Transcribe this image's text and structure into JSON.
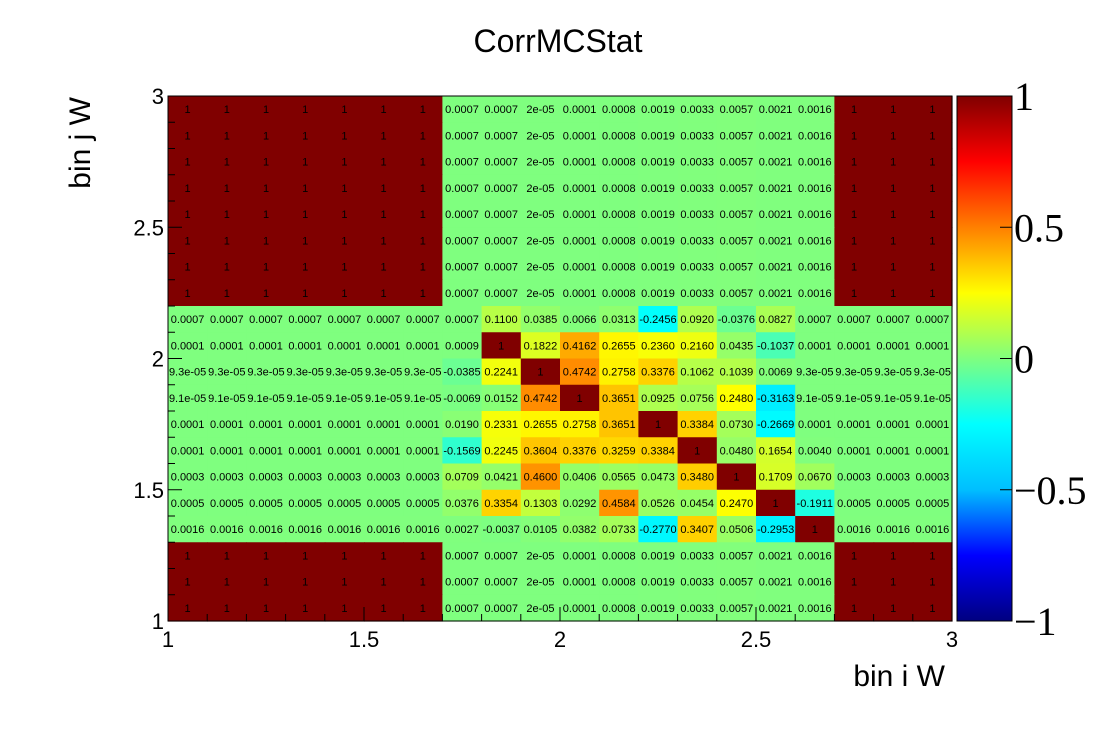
{
  "chart_data": {
    "type": "heatmap",
    "title": "CorrMCStat",
    "xlabel": "bin i W",
    "ylabel": "bin j W",
    "xlim": [
      1,
      3
    ],
    "ylim": [
      1,
      3
    ],
    "x_ticks": [
      "1",
      "1.5",
      "2",
      "2.5",
      "3"
    ],
    "y_ticks": [
      "1",
      "1.5",
      "2",
      "2.5",
      "3"
    ],
    "zlim": [
      -1,
      1
    ],
    "z_ticks": [
      "1",
      "0.5",
      "0",
      "−0.5",
      "−1"
    ],
    "nx": 20,
    "ny": 20,
    "rows": [
      [
        1,
        1,
        1,
        1,
        1,
        1,
        1,
        "0.0007",
        "0.0007",
        "2e-05",
        "0.0001",
        "0.0008",
        "0.0019",
        "0.0033",
        "0.0057",
        "0.0021",
        "0.0016",
        1,
        1,
        1
      ],
      [
        1,
        1,
        1,
        1,
        1,
        1,
        1,
        "0.0007",
        "0.0007",
        "2e-05",
        "0.0001",
        "0.0008",
        "0.0019",
        "0.0033",
        "0.0057",
        "0.0021",
        "0.0016",
        1,
        1,
        1
      ],
      [
        1,
        1,
        1,
        1,
        1,
        1,
        1,
        "0.0007",
        "0.0007",
        "2e-05",
        "0.0001",
        "0.0008",
        "0.0019",
        "0.0033",
        "0.0057",
        "0.0021",
        "0.0016",
        1,
        1,
        1
      ],
      [
        1,
        1,
        1,
        1,
        1,
        1,
        1,
        "0.0007",
        "0.0007",
        "2e-05",
        "0.0001",
        "0.0008",
        "0.0019",
        "0.0033",
        "0.0057",
        "0.0021",
        "0.0016",
        1,
        1,
        1
      ],
      [
        1,
        1,
        1,
        1,
        1,
        1,
        1,
        "0.0007",
        "0.0007",
        "2e-05",
        "0.0001",
        "0.0008",
        "0.0019",
        "0.0033",
        "0.0057",
        "0.0021",
        "0.0016",
        1,
        1,
        1
      ],
      [
        1,
        1,
        1,
        1,
        1,
        1,
        1,
        "0.0007",
        "0.0007",
        "2e-05",
        "0.0001",
        "0.0008",
        "0.0019",
        "0.0033",
        "0.0057",
        "0.0021",
        "0.0016",
        1,
        1,
        1
      ],
      [
        1,
        1,
        1,
        1,
        1,
        1,
        1,
        "0.0007",
        "0.0007",
        "2e-05",
        "0.0001",
        "0.0008",
        "0.0019",
        "0.0033",
        "0.0057",
        "0.0021",
        "0.0016",
        1,
        1,
        1
      ],
      [
        1,
        1,
        1,
        1,
        1,
        1,
        1,
        "0.0007",
        "0.0007",
        "2e-05",
        "0.0001",
        "0.0008",
        "0.0019",
        "0.0033",
        "0.0057",
        "0.0021",
        "0.0016",
        1,
        1,
        1
      ],
      [
        "0.0007",
        "0.0007",
        "0.0007",
        "0.0007",
        "0.0007",
        "0.0007",
        "0.0007",
        "0.0007",
        "0.1100",
        "0.0385",
        "0.0066",
        "0.0313",
        "-0.2456",
        "0.0920",
        "-0.0376",
        "0.0827",
        "0.0007",
        "0.0007",
        "0.0007",
        "0.0007"
      ],
      [
        "0.0001",
        "0.0001",
        "0.0001",
        "0.0001",
        "0.0001",
        "0.0001",
        "0.0001",
        "0.0009",
        "1",
        "0.1822",
        "0.4162",
        "0.2655",
        "0.2360",
        "0.2160",
        "0.0435",
        "-0.1037",
        "0.0001",
        "0.0001",
        "0.0001",
        "0.0001"
      ],
      [
        "9.3e-05",
        "9.3e-05",
        "9.3e-05",
        "9.3e-05",
        "9.3e-05",
        "9.3e-05",
        "9.3e-05",
        "-0.0385",
        "0.2241",
        "1",
        "0.4742",
        "0.2758",
        "0.3376",
        "0.1062",
        "0.1039",
        "0.0069",
        "9.3e-05",
        "9.3e-05",
        "9.3e-05",
        "9.3e-05"
      ],
      [
        "9.1e-05",
        "9.1e-05",
        "9.1e-05",
        "9.1e-05",
        "9.1e-05",
        "9.1e-05",
        "9.1e-05",
        "-0.0069",
        "0.0152",
        "0.4742",
        "1",
        "0.3651",
        "0.0925",
        "0.0756",
        "0.2480",
        "-0.3163",
        "9.1e-05",
        "9.1e-05",
        "9.1e-05",
        "9.1e-05"
      ],
      [
        "0.0001",
        "0.0001",
        "0.0001",
        "0.0001",
        "0.0001",
        "0.0001",
        "0.0001",
        "0.0190",
        "0.2331",
        "0.2655",
        "0.2758",
        "0.3651",
        "1",
        "0.3384",
        "0.0730",
        "-0.2669",
        "0.0001",
        "0.0001",
        "0.0001",
        "0.0001"
      ],
      [
        "0.0001",
        "0.0001",
        "0.0001",
        "0.0001",
        "0.0001",
        "0.0001",
        "0.0001",
        "-0.1569",
        "0.2245",
        "0.3604",
        "0.3376",
        "0.3259",
        "0.3384",
        "1",
        "0.0480",
        "0.1654",
        "0.0040",
        "0.0001",
        "0.0001",
        "0.0001"
      ],
      [
        "0.0003",
        "0.0003",
        "0.0003",
        "0.0003",
        "0.0003",
        "0.0003",
        "0.0003",
        "0.0709",
        "0.0421",
        "0.4600",
        "0.0406",
        "0.0565",
        "0.0473",
        "0.3480",
        "1",
        "0.1709",
        "0.0670",
        "0.0003",
        "0.0003",
        "0.0003"
      ],
      [
        "0.0005",
        "0.0005",
        "0.0005",
        "0.0005",
        "0.0005",
        "0.0005",
        "0.0005",
        "0.0376",
        "0.3354",
        "0.1303",
        "0.0292",
        "0.4584",
        "0.0526",
        "0.0454",
        "0.2470",
        "1",
        "-0.1911",
        "0.0005",
        "0.0005",
        "0.0005"
      ],
      [
        "0.0016",
        "0.0016",
        "0.0016",
        "0.0016",
        "0.0016",
        "0.0016",
        "0.0016",
        "0.0027",
        "-0.0037",
        "0.0105",
        "0.0382",
        "0.0733",
        "-0.2770",
        "0.3407",
        "0.0506",
        "-0.2953",
        "1",
        "0.0016",
        "0.0016",
        "0.0016"
      ],
      [
        1,
        1,
        1,
        1,
        1,
        1,
        1,
        "0.0007",
        "0.0007",
        "2e-05",
        "0.0001",
        "0.0008",
        "0.0019",
        "0.0033",
        "0.0057",
        "0.0021",
        "0.0016",
        1,
        1,
        1
      ],
      [
        1,
        1,
        1,
        1,
        1,
        1,
        1,
        "0.0007",
        "0.0007",
        "2e-05",
        "0.0001",
        "0.0008",
        "0.0019",
        "0.0033",
        "0.0057",
        "0.0021",
        "0.0016",
        1,
        1,
        1
      ],
      [
        1,
        1,
        1,
        1,
        1,
        1,
        1,
        "0.0007",
        "0.0007",
        "2e-05",
        "0.0001",
        "0.0008",
        "0.0019",
        "0.0033",
        "0.0057",
        "0.0021",
        "0.0016",
        1,
        1,
        1
      ]
    ],
    "grid": false,
    "colormap": [
      "#000080",
      "#0000ff",
      "#00bfff",
      "#00ffff",
      "#7fff7f",
      "#ffff00",
      "#ff7f00",
      "#ff0000",
      "#800000"
    ]
  }
}
